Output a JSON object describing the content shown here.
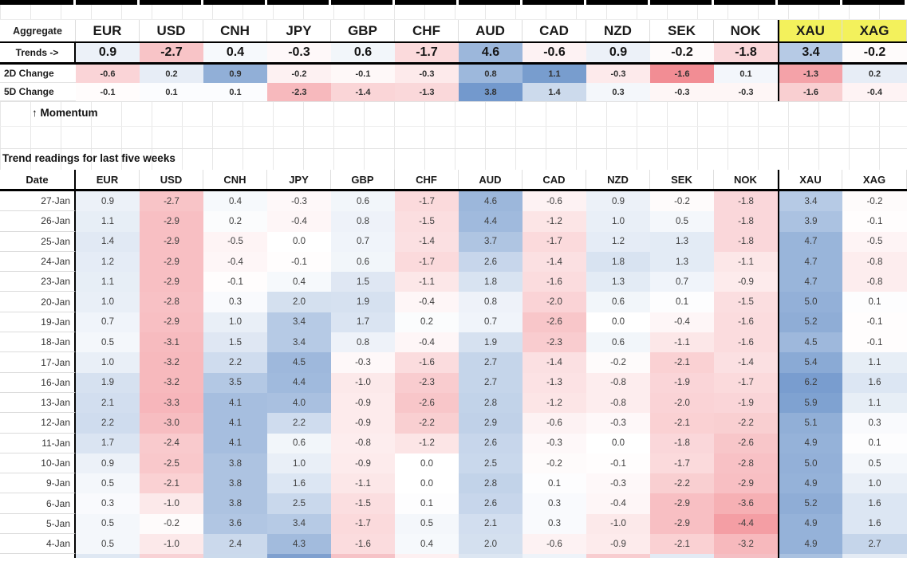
{
  "palette": {
    "heat_blue_max": "#6c94ca",
    "heat_red_max": "#f1868d",
    "yellow_highlight": "#f3f15c",
    "thick_border": "#000000",
    "grid_line": "#dcdcdc",
    "text_dark": "#1a1a1a",
    "text_value": "#3d3d3d"
  },
  "heat_scales": {
    "main": {
      "neg": 5.5,
      "pos": 6.8
    },
    "row_2d": {
      "neg": 1.7,
      "pos": 1.2
    },
    "row_5d": {
      "neg": 4.0,
      "pos": 4.0
    }
  },
  "columns": [
    "EUR",
    "USD",
    "CNH",
    "JPY",
    "GBP",
    "CHF",
    "AUD",
    "CAD",
    "NZD",
    "SEK",
    "NOK",
    "XAU",
    "XAG"
  ],
  "highlight_columns": [
    "XAU",
    "XAG"
  ],
  "aggregate": {
    "label": "Aggregate",
    "trends_label": "Trends ->",
    "trends_values": [
      0.9,
      -2.7,
      0.4,
      -0.3,
      0.6,
      -1.7,
      4.6,
      -0.6,
      0.9,
      -0.2,
      -1.8,
      3.4,
      -0.2
    ],
    "change_rows": [
      {
        "label": "2D Change",
        "scale": "row_2d",
        "values": [
          -0.6,
          0.2,
          0.9,
          -0.2,
          -0.1,
          -0.3,
          0.8,
          1.1,
          -0.3,
          -1.6,
          0.1,
          -1.3,
          0.2
        ]
      },
      {
        "label": "5D Change",
        "scale": "row_5d",
        "values": [
          -0.1,
          0.1,
          0.1,
          -2.3,
          -1.4,
          -1.3,
          3.8,
          1.4,
          0.3,
          -0.3,
          -0.3,
          -1.6,
          -0.4
        ]
      }
    ]
  },
  "momentum_label": "↑ Momentum",
  "table": {
    "title": "Trend readings for last five weeks",
    "date_header": "Date",
    "rows": [
      {
        "date": "27-Jan",
        "values": [
          0.9,
          -2.7,
          0.4,
          -0.3,
          0.6,
          -1.7,
          4.6,
          -0.6,
          0.9,
          -0.2,
          -1.8,
          3.4,
          -0.2
        ]
      },
      {
        "date": "26-Jan",
        "values": [
          1.1,
          -2.9,
          0.2,
          -0.4,
          0.8,
          -1.5,
          4.4,
          -1.2,
          1.0,
          0.5,
          -1.8,
          3.9,
          -0.1
        ]
      },
      {
        "date": "25-Jan",
        "values": [
          1.4,
          -2.9,
          -0.5,
          0.0,
          0.7,
          -1.4,
          3.7,
          -1.7,
          1.2,
          1.3,
          -1.8,
          4.7,
          -0.5
        ]
      },
      {
        "date": "24-Jan",
        "values": [
          1.2,
          -2.9,
          -0.4,
          -0.1,
          0.6,
          -1.7,
          2.6,
          -1.4,
          1.8,
          1.3,
          -1.1,
          4.7,
          -0.8
        ]
      },
      {
        "date": "23-Jan",
        "values": [
          1.1,
          -2.9,
          -0.1,
          0.4,
          1.5,
          -1.1,
          1.8,
          -1.6,
          1.3,
          0.7,
          -0.9,
          4.7,
          -0.8
        ]
      },
      {
        "date": "20-Jan",
        "values": [
          1.0,
          -2.8,
          0.3,
          2.0,
          1.9,
          -0.4,
          0.8,
          -2.0,
          0.6,
          0.1,
          -1.5,
          5.0,
          0.1
        ]
      },
      {
        "date": "19-Jan",
        "values": [
          0.7,
          -2.9,
          1.0,
          3.4,
          1.7,
          0.2,
          0.7,
          -2.6,
          0.0,
          -0.4,
          -1.6,
          5.2,
          -0.1
        ]
      },
      {
        "date": "18-Jan",
        "values": [
          0.5,
          -3.1,
          1.5,
          3.4,
          0.8,
          -0.4,
          1.9,
          -2.3,
          0.6,
          -1.1,
          -1.6,
          4.5,
          -0.1
        ]
      },
      {
        "date": "17-Jan",
        "values": [
          1.0,
          -3.2,
          2.2,
          4.5,
          -0.3,
          -1.6,
          2.7,
          -1.4,
          -0.2,
          -2.1,
          -1.4,
          5.4,
          1.1
        ]
      },
      {
        "date": "16-Jan",
        "values": [
          1.9,
          -3.2,
          3.5,
          4.4,
          -1.0,
          -2.3,
          2.7,
          -1.3,
          -0.8,
          -1.9,
          -1.7,
          6.2,
          1.6
        ]
      },
      {
        "date": "13-Jan",
        "values": [
          2.1,
          -3.3,
          4.1,
          4.0,
          -0.9,
          -2.6,
          2.8,
          -1.2,
          -0.8,
          -2.0,
          -1.9,
          5.9,
          1.1
        ]
      },
      {
        "date": "12-Jan",
        "values": [
          2.2,
          -3.0,
          4.1,
          2.2,
          -0.9,
          -2.2,
          2.9,
          -0.6,
          -0.3,
          -2.1,
          -2.2,
          5.1,
          0.3
        ]
      },
      {
        "date": "11-Jan",
        "values": [
          1.7,
          -2.4,
          4.1,
          0.6,
          -0.8,
          -1.2,
          2.6,
          -0.3,
          0.0,
          -1.8,
          -2.6,
          4.9,
          0.1
        ]
      },
      {
        "date": "10-Jan",
        "values": [
          0.9,
          -2.5,
          3.8,
          1.0,
          -0.9,
          0.0,
          2.5,
          -0.2,
          -0.1,
          -1.7,
          -2.8,
          5.0,
          0.5
        ]
      },
      {
        "date": "9-Jan",
        "values": [
          0.5,
          -2.1,
          3.8,
          1.6,
          -1.1,
          0.0,
          2.8,
          0.1,
          -0.3,
          -2.2,
          -2.9,
          4.9,
          1.0
        ]
      },
      {
        "date": "6-Jan",
        "values": [
          0.3,
          -1.0,
          3.8,
          2.5,
          -1.5,
          0.1,
          2.6,
          0.3,
          -0.4,
          -2.9,
          -3.6,
          5.2,
          1.6
        ]
      },
      {
        "date": "5-Jan",
        "values": [
          0.5,
          -0.2,
          3.6,
          3.4,
          -1.7,
          0.5,
          2.1,
          0.3,
          -1.0,
          -2.9,
          -4.4,
          4.9,
          1.6
        ]
      },
      {
        "date": "4-Jan",
        "values": [
          0.5,
          -1.0,
          2.4,
          4.3,
          -1.6,
          0.4,
          2.0,
          -0.6,
          -0.9,
          -2.1,
          -3.2,
          4.9,
          2.7
        ]
      }
    ],
    "partial_row_colors": [
      "#dfe8f3",
      "#f8d2d5",
      "#cbdaec",
      "#7fa0cf",
      "#f6c3c7",
      "#fdf0f1",
      "#dce6f2",
      "#eef3f9",
      "#f8cdd0",
      "#e3eaf4",
      "#f5bfc4",
      "#a9c1e0",
      "#e4ebf4"
    ]
  }
}
